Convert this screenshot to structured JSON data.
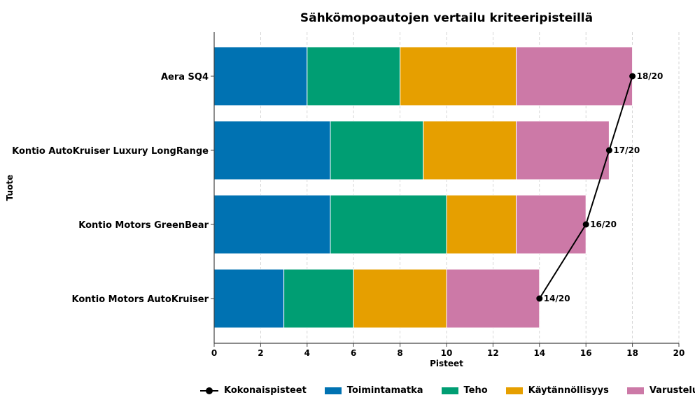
{
  "chart_data": {
    "type": "bar",
    "orientation": "horizontal",
    "stacked": true,
    "title": "Sähkömopoautojen vertailu kriteeripisteillä",
    "xlabel": "Pisteet",
    "ylabel": "Tuote",
    "xlim": [
      0,
      20
    ],
    "xticks": [
      "0",
      "2",
      "4",
      "6",
      "8",
      "10",
      "12",
      "14",
      "16",
      "18",
      "20"
    ],
    "grid": "vertical dashed",
    "legend_position": "bottom",
    "categories": [
      "Aera SQ4",
      "Kontio AutoKruiser Luxury LongRange",
      "Kontio Motors GreenBear",
      "Kontio Motors AutoKruiser"
    ],
    "series": [
      {
        "name": "Toimintamatka",
        "color": "#0072b2",
        "values": [
          4,
          5,
          5,
          3
        ]
      },
      {
        "name": "Teho",
        "color": "#009e73",
        "values": [
          4,
          4,
          5,
          3
        ]
      },
      {
        "name": "Käytännöllisyys",
        "color": "#e69f00",
        "values": [
          5,
          4,
          3,
          4
        ]
      },
      {
        "name": "Varustelu",
        "color": "#cc79a7",
        "values": [
          5,
          4,
          3,
          4
        ]
      }
    ],
    "total_series": {
      "name": "Kokonaispisteet",
      "type": "line",
      "color": "#000000",
      "values": [
        18,
        17,
        16,
        14
      ],
      "labels": [
        "18/20",
        "17/20",
        "16/20",
        "14/20"
      ]
    }
  }
}
